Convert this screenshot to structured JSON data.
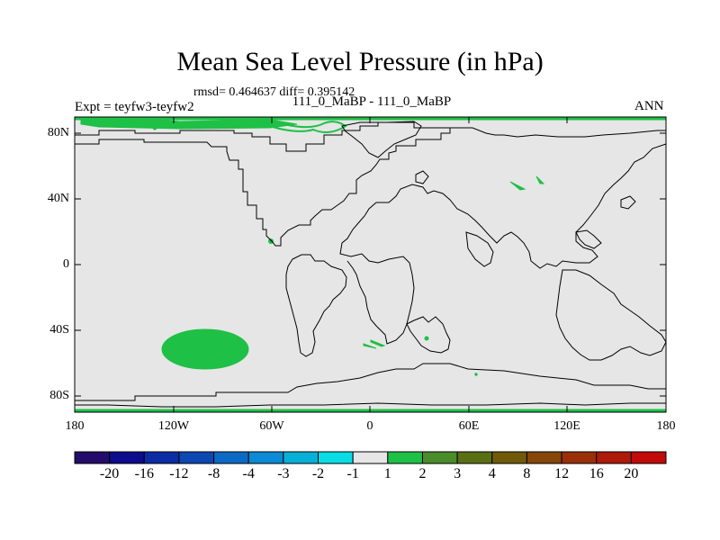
{
  "title": "Mean Sea Level Pressure (in hPa)",
  "stats": "rmsd= 0.464637 diff= 0.395142",
  "expt": "Expt = teyfw3-teyfw2",
  "cases": "111_0_MaBP - 111_0_MaBP",
  "season": "ANN",
  "lat_labels": [
    "80N",
    "40N",
    "0",
    "40S",
    "80S"
  ],
  "lon_labels": [
    "180",
    "120W",
    "60W",
    "0",
    "60E",
    "120E",
    "180"
  ],
  "colorbar": {
    "colors": [
      "#230c6a",
      "#0c0c8c",
      "#0c2ca5",
      "#0c47b2",
      "#0c6ac5",
      "#0c8ad5",
      "#08b0d8",
      "#08dde6",
      "#e6e6e6",
      "#1ec046",
      "#4a8c2a",
      "#5a6e14",
      "#705a0a",
      "#86460a",
      "#9a300a",
      "#ae1a0a",
      "#c20a0a"
    ],
    "labels": [
      "-20",
      "-16",
      "-12",
      "-8",
      "-4",
      "-3",
      "-2",
      "-1",
      "1",
      "2",
      "3",
      "4",
      "8",
      "12",
      "16",
      "20"
    ]
  },
  "map": {
    "background": "#e6e6e6",
    "anomaly_color": "#1ec046",
    "coast_color": "#000000"
  }
}
